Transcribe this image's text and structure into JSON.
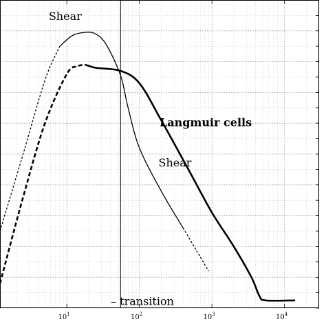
{
  "chart_data": {
    "type": "line",
    "xscale": "log",
    "xlim": [
      1.2,
      30000
    ],
    "ylim": [
      0,
      10
    ],
    "grid": true,
    "xticks": [
      {
        "value": 10,
        "base": "10",
        "exp": "1"
      },
      {
        "value": 100,
        "base": "10",
        "exp": "2"
      },
      {
        "value": 1000,
        "base": "10",
        "exp": "3"
      },
      {
        "value": 10000,
        "base": "10",
        "exp": "4"
      }
    ],
    "transition_x": 55,
    "series": [
      {
        "name": "Shear",
        "style": "thin",
        "dashed_points": [
          [
            1.2,
            2.5
          ],
          [
            2.5,
            5.0
          ],
          [
            5.0,
            7.4
          ],
          [
            8.0,
            8.5
          ]
        ],
        "solid_points": [
          [
            8.0,
            8.5
          ],
          [
            12.0,
            8.85
          ],
          [
            18.0,
            8.95
          ],
          [
            25.0,
            8.9
          ],
          [
            35.0,
            8.55
          ],
          [
            55.0,
            7.55
          ],
          [
            70.0,
            6.5
          ],
          [
            100.0,
            5.2
          ],
          [
            200.0,
            3.8
          ],
          [
            400.0,
            2.6
          ]
        ],
        "dashed_tail_points": [
          [
            400.0,
            2.6
          ],
          [
            600.0,
            1.9
          ],
          [
            900.0,
            1.2
          ]
        ]
      },
      {
        "name": "Langmuir cells",
        "style": "thick",
        "dashed_points": [
          [
            1.2,
            0.8
          ],
          [
            2.5,
            3.6
          ],
          [
            5.0,
            6.0
          ],
          [
            10.0,
            7.6
          ],
          [
            14.0,
            7.85
          ],
          [
            18.0,
            7.9
          ]
        ],
        "solid_points": [
          [
            18.0,
            7.9
          ],
          [
            25.0,
            7.8
          ],
          [
            55.0,
            7.7
          ],
          [
            100.0,
            7.3
          ],
          [
            200.0,
            6.1
          ],
          [
            500.0,
            4.4
          ],
          [
            1000.0,
            3.1
          ],
          [
            2000.0,
            2.0
          ],
          [
            3500.0,
            1.0
          ],
          [
            4500.0,
            0.4
          ],
          [
            5500.0,
            0.25
          ],
          [
            14000.0,
            0.25
          ]
        ]
      }
    ],
    "annotations": [
      {
        "text": "Shear",
        "x": 9.5,
        "y": 9.35,
        "bold": false
      },
      {
        "text": "Shear",
        "x": 310,
        "y": 4.6,
        "bold": false
      },
      {
        "text": "Langmuir cells",
        "x": 820,
        "y": 5.9,
        "bold": true
      },
      {
        "text": "– transition",
        "x": 110,
        "y": 0.1,
        "bold": false
      }
    ]
  }
}
